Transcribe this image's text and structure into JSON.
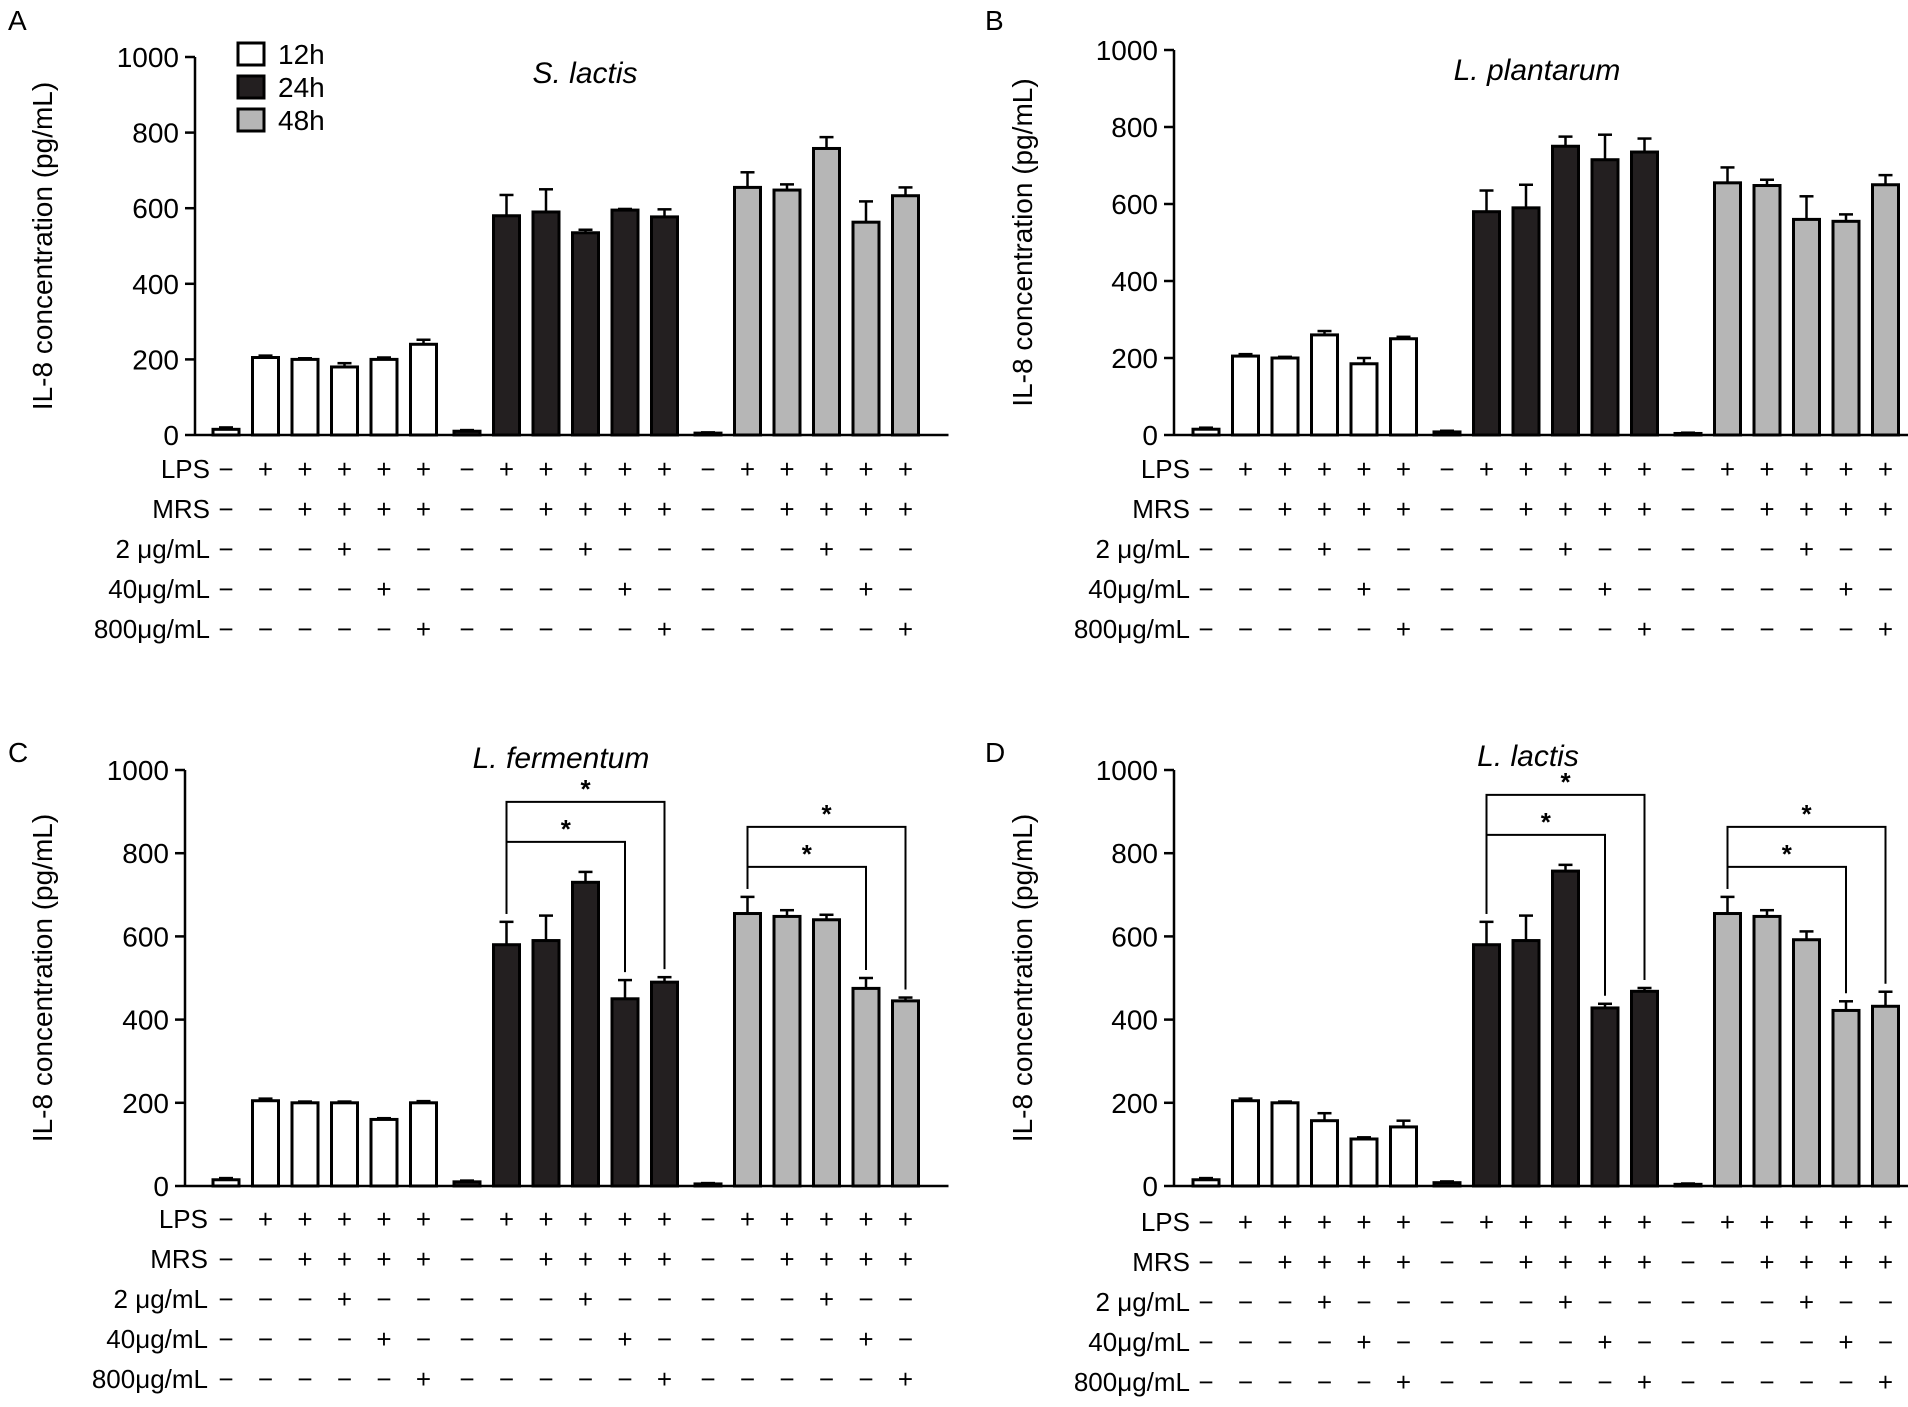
{
  "legend": [
    {
      "label": "12h",
      "fill": "#ffffff"
    },
    {
      "label": "24h",
      "fill": "#231f20"
    },
    {
      "label": "48h",
      "fill": "#b6b6b6"
    }
  ],
  "colors": {
    "axis": "#000000",
    "bar_12h": "#ffffff",
    "bar_24h": "#231f20",
    "bar_48h": "#b6b6b6"
  },
  "rows": [
    {
      "label": "LPS",
      "signs": [
        "−",
        "+",
        "+",
        "+",
        "+",
        "+"
      ]
    },
    {
      "label": "MRS",
      "signs": [
        "−",
        "−",
        "+",
        "+",
        "+",
        "+"
      ]
    },
    {
      "label": "2 μg/mL",
      "signs": [
        "−",
        "−",
        "−",
        "+",
        "−",
        "−"
      ]
    },
    {
      "label": "40μg/mL",
      "signs": [
        "−",
        "−",
        "−",
        "−",
        "+",
        "−"
      ]
    },
    {
      "label": "800μg/mL",
      "signs": [
        "−",
        "−",
        "−",
        "−",
        "−",
        "+"
      ]
    }
  ],
  "chart_data": [
    {
      "panel": "A",
      "type": "bar",
      "title": "S. lactis",
      "ylabel": "IL-8 concentration (pg/mL)",
      "ylim": [
        0,
        1000
      ],
      "yticks": [
        0,
        200,
        400,
        600,
        800,
        1000
      ],
      "series": [
        {
          "name": "12h",
          "values": [
            15,
            205,
            200,
            180,
            200,
            240
          ],
          "errors": [
            5,
            5,
            3,
            10,
            5,
            12
          ]
        },
        {
          "name": "24h",
          "values": [
            10,
            580,
            590,
            535,
            595,
            577
          ],
          "errors": [
            3,
            55,
            60,
            8,
            3,
            20
          ]
        },
        {
          "name": "48h",
          "values": [
            5,
            655,
            648,
            758,
            563,
            633
          ],
          "errors": [
            2,
            40,
            15,
            30,
            55,
            22
          ]
        }
      ],
      "significance": []
    },
    {
      "panel": "B",
      "type": "bar",
      "title": "L. plantarum",
      "ylabel": "IL-8 concentration (pg/mL)",
      "ylim": [
        0,
        1000
      ],
      "yticks": [
        0,
        200,
        400,
        600,
        800,
        1000
      ],
      "series": [
        {
          "name": "12h",
          "values": [
            15,
            205,
            200,
            260,
            185,
            250
          ],
          "errors": [
            4,
            5,
            3,
            10,
            15,
            5
          ]
        },
        {
          "name": "24h",
          "values": [
            8,
            580,
            590,
            750,
            715,
            735
          ],
          "errors": [
            3,
            55,
            60,
            25,
            65,
            35
          ]
        },
        {
          "name": "48h",
          "values": [
            4,
            655,
            648,
            560,
            555,
            650
          ],
          "errors": [
            2,
            40,
            15,
            60,
            18,
            25
          ]
        }
      ],
      "significance": []
    },
    {
      "panel": "C",
      "type": "bar",
      "title": "L. fermentum",
      "ylabel": "IL-8 concentration (pg/mL)",
      "ylim": [
        0,
        1000
      ],
      "yticks": [
        0,
        200,
        400,
        600,
        800,
        1000
      ],
      "series": [
        {
          "name": "12h",
          "values": [
            15,
            205,
            200,
            200,
            160,
            200
          ],
          "errors": [
            4,
            5,
            3,
            3,
            3,
            4
          ]
        },
        {
          "name": "24h",
          "values": [
            10,
            580,
            590,
            730,
            450,
            490
          ],
          "errors": [
            3,
            55,
            60,
            25,
            45,
            12
          ]
        },
        {
          "name": "48h",
          "values": [
            5,
            655,
            648,
            640,
            475,
            445
          ],
          "errors": [
            2,
            40,
            15,
            12,
            25,
            8
          ]
        }
      ],
      "significance": [
        {
          "group": 1,
          "from": 1,
          "to": 4,
          "label": "*"
        },
        {
          "group": 1,
          "from": 1,
          "to": 5,
          "label": "*"
        },
        {
          "group": 2,
          "from": 1,
          "to": 4,
          "label": "*"
        },
        {
          "group": 2,
          "from": 1,
          "to": 5,
          "label": "*"
        }
      ]
    },
    {
      "panel": "D",
      "type": "bar",
      "title": "L. lactis",
      "ylabel": "IL-8 concentration (pg/mL)",
      "ylim": [
        0,
        1000
      ],
      "yticks": [
        0,
        200,
        400,
        600,
        800,
        1000
      ],
      "series": [
        {
          "name": "12h",
          "values": [
            15,
            205,
            200,
            157,
            113,
            142
          ],
          "errors": [
            4,
            5,
            3,
            18,
            4,
            15
          ]
        },
        {
          "name": "24h",
          "values": [
            8,
            580,
            590,
            757,
            428,
            468
          ],
          "errors": [
            3,
            55,
            60,
            15,
            10,
            8
          ]
        },
        {
          "name": "48h",
          "values": [
            4,
            655,
            648,
            592,
            422,
            432
          ],
          "errors": [
            2,
            40,
            15,
            20,
            22,
            35
          ]
        }
      ],
      "significance": [
        {
          "group": 1,
          "from": 1,
          "to": 4,
          "label": "*"
        },
        {
          "group": 1,
          "from": 1,
          "to": 5,
          "label": "*"
        },
        {
          "group": 2,
          "from": 1,
          "to": 4,
          "label": "*"
        },
        {
          "group": 2,
          "from": 1,
          "to": 5,
          "label": "*"
        }
      ]
    }
  ]
}
